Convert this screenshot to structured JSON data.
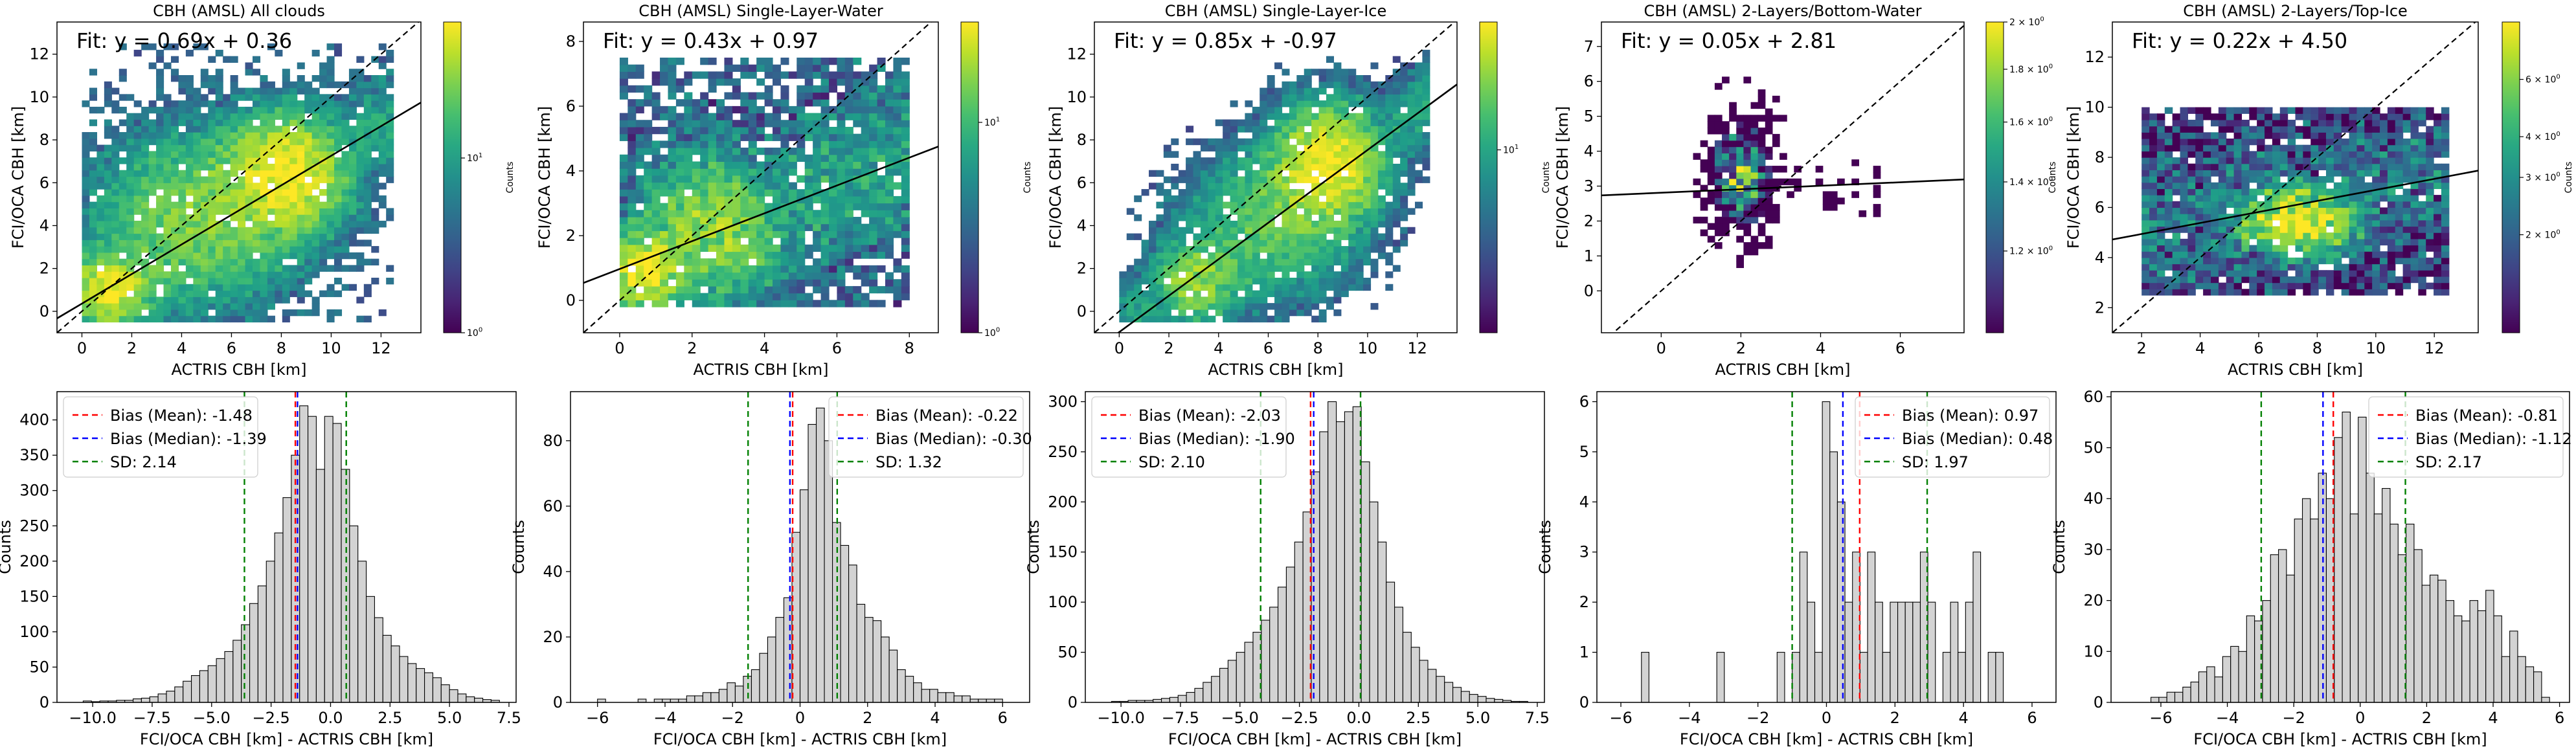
{
  "figure": {
    "titles": [
      "CBH (AMSL) All clouds",
      "CBH (AMSL) Single-Layer-Water",
      "CBH (AMSL) Single-Layer-Ice",
      "CBH (AMSL) 2-Layers/Bottom-Water",
      "CBH (AMSL) 2-Layers/Top-Ice"
    ]
  },
  "colors": {
    "identity": "#000000",
    "fit": "#000000",
    "mean": "#ff0000",
    "median": "#0000ff",
    "sd": "#008000",
    "hist_fill": "#d3d3d3",
    "hist_edge": "#000000"
  },
  "colormap": "viridis",
  "chart_data": [
    {
      "type": "heatmap",
      "title": "CBH (AMSL) All clouds",
      "xlabel": "ACTRIS CBH [km]",
      "ylabel": "FCI/OCA CBH [km]",
      "xlim": [
        -1,
        13.6
      ],
      "ylim": [
        -1,
        13.5
      ],
      "xticks": [
        0,
        2,
        4,
        6,
        8,
        10,
        12
      ],
      "yticks": [
        0,
        2,
        4,
        6,
        8,
        10,
        12
      ],
      "fit_label": "Fit: y = 0.69x + 0.36",
      "fit": {
        "slope": 0.69,
        "intercept": 0.36
      },
      "colorbar": {
        "label": "Counts",
        "scale": "log",
        "min": 1,
        "max": 60,
        "ticks": [
          "10^0",
          "10^1"
        ]
      },
      "density": {
        "xr": [
          0,
          12.5
        ],
        "yr": [
          -0.5,
          12.5
        ],
        "nx": 42,
        "ny": 44,
        "clusters": [
          {
            "x": 1,
            "y": 1,
            "sx": 1.0,
            "sy": 1.0,
            "w": 1.0
          },
          {
            "x": 8.3,
            "y": 6.5,
            "sx": 1.5,
            "sy": 1.7,
            "w": 1.0
          },
          {
            "x": 4.5,
            "y": 4.2,
            "sx": 2.5,
            "sy": 2.5,
            "w": 0.5
          }
        ],
        "spread": 1.5,
        "noise": 0.08,
        "seed": 11,
        "maxc": 60
      }
    },
    {
      "type": "heatmap",
      "title": "CBH (AMSL) Single-Layer-Water",
      "xlabel": "ACTRIS CBH [km]",
      "ylabel": "FCI/OCA CBH [km]",
      "xlim": [
        -1,
        8.8
      ],
      "ylim": [
        -1,
        8.6
      ],
      "xticks": [
        0,
        2,
        4,
        6,
        8
      ],
      "yticks": [
        0,
        2,
        4,
        6,
        8
      ],
      "fit_label": "Fit: y = 0.43x + 0.97",
      "fit": {
        "slope": 0.43,
        "intercept": 0.97
      },
      "colorbar": {
        "label": "Counts",
        "scale": "log",
        "min": 1,
        "max": 30,
        "ticks": [
          "10^0",
          "10^1"
        ]
      },
      "density": {
        "xr": [
          0,
          8
        ],
        "yr": [
          -0.2,
          7.5
        ],
        "nx": 36,
        "ny": 36,
        "clusters": [
          {
            "x": 0.6,
            "y": 0.8,
            "sx": 0.6,
            "sy": 0.7,
            "w": 1.0
          },
          {
            "x": 2.6,
            "y": 2.3,
            "sx": 1.4,
            "sy": 1.4,
            "w": 0.6
          }
        ],
        "spread": 1.6,
        "noise": 0.18,
        "seed": 23,
        "maxc": 30
      }
    },
    {
      "type": "heatmap",
      "title": "CBH (AMSL) Single-Layer-Ice",
      "xlabel": "ACTRIS CBH [km]",
      "ylabel": "FCI/OCA CBH [km]",
      "xlim": [
        -1,
        13.6
      ],
      "ylim": [
        -1,
        13.5
      ],
      "xticks": [
        0,
        2,
        4,
        6,
        8,
        10,
        12
      ],
      "yticks": [
        0,
        2,
        4,
        6,
        8,
        10,
        12
      ],
      "fit_label": "Fit: y = 0.85x + -0.97",
      "fit": {
        "slope": 0.85,
        "intercept": -0.97
      },
      "colorbar": {
        "label": "Counts",
        "scale": "log",
        "min": 1,
        "max": 50,
        "ticks": [
          "10^1"
        ]
      },
      "density": {
        "xr": [
          0,
          12.5
        ],
        "yr": [
          -0.5,
          12.5
        ],
        "nx": 42,
        "ny": 44,
        "clusters": [
          {
            "x": 8.5,
            "y": 7.0,
            "sx": 1.4,
            "sy": 1.7,
            "w": 1.0
          },
          {
            "x": 3.0,
            "y": 1.3,
            "sx": 1.1,
            "sy": 1.2,
            "w": 0.55
          },
          {
            "x": 6,
            "y": 4,
            "sx": 2.2,
            "sy": 2.2,
            "w": 0.4
          }
        ],
        "spread": 1.5,
        "noise": 0.06,
        "seed": 37,
        "maxc": 50
      }
    },
    {
      "type": "heatmap",
      "title": "CBH (AMSL) 2-Layers/Bottom-Water",
      "xlabel": "ACTRIS CBH [km]",
      "ylabel": "FCI/OCA CBH [km]",
      "xlim": [
        -1.5,
        7.6
      ],
      "ylim": [
        -1.2,
        7.7
      ],
      "xticks": [
        0,
        2,
        4,
        6
      ],
      "yticks": [
        0,
        1,
        2,
        3,
        4,
        5,
        6,
        7
      ],
      "fit_label": "Fit: y = 0.05x + 2.81",
      "fit": {
        "slope": 0.05,
        "intercept": 2.81
      },
      "colorbar": {
        "label": "Counts",
        "scale": "log",
        "min": 1,
        "max": 2,
        "ticks": [
          "1.2 × 10^0",
          "1.4 × 10^0",
          "1.6 × 10^0",
          "1.8 × 10^0",
          "2 × 10^0"
        ]
      },
      "density": {
        "xr": [
          0.8,
          5.5
        ],
        "yr": [
          0.3,
          6.5
        ],
        "nx": 26,
        "ny": 34,
        "clusters": [
          {
            "x": 2.0,
            "y": 3.3,
            "sx": 0.6,
            "sy": 1.3,
            "w": 1.0
          }
        ],
        "spread": 0.7,
        "noise": 0.02,
        "seed": 5,
        "maxc": 2,
        "sparse": 0.55
      }
    },
    {
      "type": "heatmap",
      "title": "CBH (AMSL) 2-Layers/Top-Ice",
      "xlabel": "ACTRIS CBH [km]",
      "ylabel": "FCI/OCA CBH [km]",
      "xlim": [
        1,
        13.5
      ],
      "ylim": [
        1,
        13.4
      ],
      "xticks": [
        2,
        4,
        6,
        8,
        10,
        12
      ],
      "yticks": [
        2,
        4,
        6,
        8,
        10,
        12
      ],
      "fit_label": "Fit: y = 0.22x + 4.50",
      "fit": {
        "slope": 0.22,
        "intercept": 4.5
      },
      "colorbar": {
        "label": "Counts",
        "scale": "log",
        "min": 1,
        "max": 9,
        "ticks": [
          "2 × 10^0",
          "3 × 10^0",
          "4 × 10^0",
          "6 × 10^0"
        ]
      },
      "density": {
        "xr": [
          2,
          12.5
        ],
        "yr": [
          2.5,
          10
        ],
        "nx": 40,
        "ny": 30,
        "clusters": [
          {
            "x": 7.3,
            "y": 5.5,
            "sx": 1.5,
            "sy": 1.0,
            "w": 1.0
          }
        ],
        "spread": 2.2,
        "noise": 0.25,
        "seed": 61,
        "maxc": 9
      }
    },
    {
      "type": "bar",
      "xlabel": "FCI/OCA CBH [km] - ACTRIS CBH [km]",
      "ylabel": "Counts",
      "xlim": [
        -11.5,
        7.8
      ],
      "ylim": [
        0,
        440
      ],
      "xticks": [
        -10.0,
        -7.5,
        -5.0,
        -2.5,
        0.0,
        2.5,
        5.0,
        7.5
      ],
      "xtick_labels": [
        "−10.0",
        "−7.5",
        "−5.0",
        "−2.5",
        "0.0",
        "2.5",
        "5.0",
        "7.5"
      ],
      "yticks": [
        0,
        50,
        100,
        150,
        200,
        250,
        300,
        350,
        400
      ],
      "legend": [
        "Bias (Mean): -1.48",
        "Bias (Median): -1.39",
        "SD: 2.14"
      ],
      "legend_loc": "top-left",
      "mean": -1.48,
      "median": -1.39,
      "sd": 2.14,
      "bins": {
        "start": -10.4,
        "width": 0.35
      },
      "values": [
        2,
        1,
        2,
        2,
        3,
        3,
        5,
        6,
        8,
        12,
        16,
        22,
        30,
        38,
        45,
        52,
        62,
        72,
        88,
        110,
        140,
        165,
        200,
        240,
        290,
        350,
        420,
        405,
        330,
        405,
        395,
        330,
        250,
        200,
        150,
        120,
        95,
        80,
        65,
        55,
        48,
        42,
        35,
        25,
        18,
        12,
        8,
        6,
        4,
        3
      ]
    },
    {
      "type": "bar",
      "xlabel": "FCI/OCA CBH [km] - ACTRIS CBH [km]",
      "ylabel": "Counts",
      "xlim": [
        -6.8,
        6.8
      ],
      "ylim": [
        0,
        95
      ],
      "xticks": [
        -6,
        -4,
        -2,
        0,
        2,
        4,
        6
      ],
      "xtick_labels": [
        "−6",
        "−4",
        "−2",
        "0",
        "2",
        "4",
        "6"
      ],
      "yticks": [
        0,
        20,
        40,
        60,
        80
      ],
      "legend": [
        "Bias (Mean): -0.22",
        "Bias (Median): -0.30",
        "SD: 1.32"
      ],
      "legend_loc": "top-right",
      "mean": -0.22,
      "median": -0.3,
      "sd": 1.32,
      "bins": {
        "start": -6.0,
        "width": 0.24
      },
      "values": [
        1,
        0,
        0,
        0,
        0,
        1,
        0,
        1,
        1,
        1,
        1,
        2,
        2,
        3,
        3,
        4,
        6,
        5,
        8,
        10,
        15,
        20,
        26,
        32,
        52,
        65,
        85,
        90,
        80,
        55,
        48,
        42,
        30,
        26,
        25,
        20,
        16,
        10,
        8,
        6,
        4,
        4,
        3,
        3,
        2,
        2,
        1,
        1,
        1,
        1
      ]
    },
    {
      "type": "bar",
      "xlabel": "FCI/OCA CBH [km] - ACTRIS CBH [km]",
      "ylabel": "Counts",
      "xlim": [
        -11.5,
        7.8
      ],
      "ylim": [
        0,
        310
      ],
      "xticks": [
        -10.0,
        -7.5,
        -5.0,
        -2.5,
        0.0,
        2.5,
        5.0,
        7.5
      ],
      "xtick_labels": [
        "−10.0",
        "−7.5",
        "−5.0",
        "−2.5",
        "0.0",
        "2.5",
        "5.0",
        "7.5"
      ],
      "yticks": [
        0,
        50,
        100,
        150,
        200,
        250,
        300
      ],
      "legend": [
        "Bias (Mean): -2.03",
        "Bias (Median): -1.90",
        "SD: 2.10"
      ],
      "legend_loc": "top-left",
      "mean": -2.03,
      "median": -1.9,
      "sd": 2.1,
      "bins": {
        "start": -10.4,
        "width": 0.35
      },
      "values": [
        1,
        1,
        2,
        2,
        2,
        3,
        4,
        5,
        7,
        10,
        14,
        20,
        26,
        34,
        42,
        50,
        60,
        70,
        82,
        95,
        115,
        135,
        160,
        190,
        230,
        270,
        300,
        280,
        290,
        295,
        240,
        200,
        160,
        120,
        95,
        70,
        55,
        42,
        33,
        26,
        20,
        15,
        11,
        8,
        6,
        4,
        3,
        2,
        1,
        1
      ]
    },
    {
      "type": "bar",
      "xlabel": "FCI/OCA CBH [km] - ACTRIS CBH [km]",
      "ylabel": "Counts",
      "xlim": [
        -6.7,
        6.7
      ],
      "ylim": [
        0,
        6.2
      ],
      "xticks": [
        -6,
        -4,
        -2,
        0,
        2,
        4,
        6
      ],
      "xtick_labels": [
        "−6",
        "−4",
        "−2",
        "0",
        "2",
        "4",
        "6"
      ],
      "yticks": [
        0,
        1,
        2,
        3,
        4,
        5,
        6
      ],
      "legend": [
        "Bias (Mean): 0.97",
        "Bias (Median): 0.48",
        "SD: 1.97"
      ],
      "legend_loc": "top-right",
      "mean": 0.97,
      "median": 0.48,
      "sd": 1.97,
      "bins": {
        "start": -5.4,
        "width": 0.22
      },
      "values": [
        1,
        0,
        0,
        0,
        0,
        0,
        0,
        0,
        0,
        0,
        1,
        0,
        0,
        0,
        0,
        0,
        0,
        0,
        1,
        0,
        1,
        3,
        2,
        1,
        6,
        5,
        4,
        2,
        3,
        1,
        3,
        2,
        1,
        2,
        2,
        2,
        2,
        3,
        2,
        0,
        1,
        2,
        1,
        2,
        3,
        0,
        1,
        1,
        0,
        0
      ]
    },
    {
      "type": "bar",
      "xlabel": "FCI/OCA CBH [km] - ACTRIS CBH [km]",
      "ylabel": "Counts",
      "xlim": [
        -7.5,
        6.3
      ],
      "ylim": [
        0,
        61
      ],
      "xticks": [
        -6,
        -4,
        -2,
        0,
        2,
        4,
        6
      ],
      "xtick_labels": [
        "−6",
        "−4",
        "−2",
        "0",
        "2",
        "4",
        "6"
      ],
      "yticks": [
        0,
        10,
        20,
        30,
        40,
        50,
        60
      ],
      "legend": [
        "Bias (Mean): -0.81",
        "Bias (Median): -1.12",
        "SD: 2.17"
      ],
      "legend_loc": "top-right",
      "mean": -0.81,
      "median": -1.12,
      "sd": 2.17,
      "bins": {
        "start": -6.3,
        "width": 0.24
      },
      "values": [
        1,
        1,
        2,
        2,
        3,
        4,
        6,
        7,
        5,
        9,
        11,
        10,
        17,
        16,
        20,
        29,
        30,
        25,
        36,
        40,
        36,
        45,
        40,
        52,
        57,
        37,
        56,
        45,
        37,
        42,
        35,
        29,
        35,
        30,
        23,
        25,
        24,
        20,
        17,
        16,
        20,
        18,
        22,
        17,
        9,
        14,
        9,
        7,
        6,
        1
      ]
    }
  ]
}
